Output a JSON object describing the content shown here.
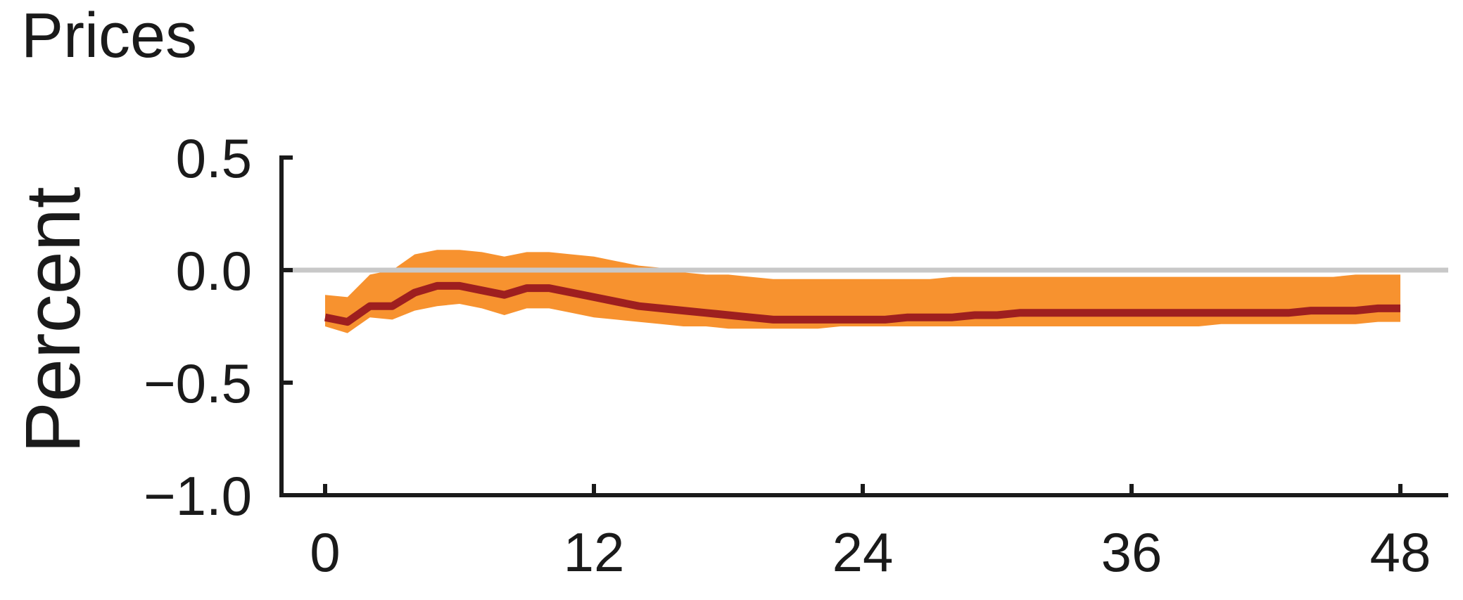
{
  "chart_data": {
    "type": "line",
    "title": "Prices",
    "ylabel": "Percent",
    "xlabel": "",
    "xlim": [
      0,
      48
    ],
    "ylim": [
      -1.0,
      0.5
    ],
    "xticks": [
      0,
      12,
      24,
      36,
      48
    ],
    "xtick_labels": [
      "0",
      "12",
      "24",
      "36",
      "48"
    ],
    "yticks": [
      0.5,
      0.0,
      -0.5,
      -1.0
    ],
    "ytick_labels": [
      "0.5",
      "0.0",
      "−0.5",
      "−1.0"
    ],
    "reference_line_y": 0.0,
    "grid": false,
    "colors": {
      "line": "#9e1f1f",
      "band": "#f7922f",
      "reference": "#c8c8c8",
      "axis": "#1a1a1a"
    },
    "x": [
      0,
      1,
      2,
      3,
      4,
      5,
      6,
      7,
      8,
      9,
      10,
      11,
      12,
      13,
      14,
      15,
      16,
      17,
      18,
      19,
      20,
      21,
      22,
      23,
      24,
      25,
      26,
      27,
      28,
      29,
      30,
      31,
      32,
      33,
      34,
      35,
      36,
      37,
      38,
      39,
      40,
      41,
      42,
      43,
      44,
      45,
      46,
      47,
      48
    ],
    "series": [
      {
        "values": [
          -0.21,
          -0.23,
          -0.16,
          -0.16,
          -0.1,
          -0.07,
          -0.07,
          -0.09,
          -0.11,
          -0.08,
          -0.08,
          -0.1,
          -0.12,
          -0.14,
          -0.16,
          -0.17,
          -0.18,
          -0.19,
          -0.2,
          -0.21,
          -0.22,
          -0.22,
          -0.22,
          -0.22,
          -0.22,
          -0.22,
          -0.21,
          -0.21,
          -0.21,
          -0.2,
          -0.2,
          -0.19,
          -0.19,
          -0.19,
          -0.19,
          -0.19,
          -0.19,
          -0.19,
          -0.19,
          -0.19,
          -0.19,
          -0.19,
          -0.19,
          -0.19,
          -0.18,
          -0.18,
          -0.18,
          -0.17,
          -0.17
        ]
      }
    ],
    "band": {
      "upper": [
        -0.11,
        -0.12,
        -0.02,
        0.0,
        0.07,
        0.09,
        0.09,
        0.08,
        0.06,
        0.08,
        0.08,
        0.07,
        0.06,
        0.04,
        0.02,
        0.01,
        -0.01,
        -0.02,
        -0.02,
        -0.03,
        -0.04,
        -0.04,
        -0.04,
        -0.04,
        -0.04,
        -0.04,
        -0.04,
        -0.04,
        -0.03,
        -0.03,
        -0.03,
        -0.03,
        -0.03,
        -0.03,
        -0.03,
        -0.03,
        -0.03,
        -0.03,
        -0.03,
        -0.03,
        -0.03,
        -0.03,
        -0.03,
        -0.03,
        -0.03,
        -0.03,
        -0.02,
        -0.02,
        -0.02
      ],
      "lower": [
        -0.25,
        -0.28,
        -0.21,
        -0.22,
        -0.18,
        -0.16,
        -0.15,
        -0.17,
        -0.2,
        -0.17,
        -0.17,
        -0.19,
        -0.21,
        -0.22,
        -0.23,
        -0.24,
        -0.25,
        -0.25,
        -0.26,
        -0.26,
        -0.26,
        -0.26,
        -0.26,
        -0.25,
        -0.25,
        -0.25,
        -0.25,
        -0.25,
        -0.25,
        -0.25,
        -0.25,
        -0.25,
        -0.25,
        -0.25,
        -0.25,
        -0.25,
        -0.25,
        -0.25,
        -0.25,
        -0.25,
        -0.24,
        -0.24,
        -0.24,
        -0.24,
        -0.24,
        -0.24,
        -0.24,
        -0.23,
        -0.23
      ]
    }
  }
}
